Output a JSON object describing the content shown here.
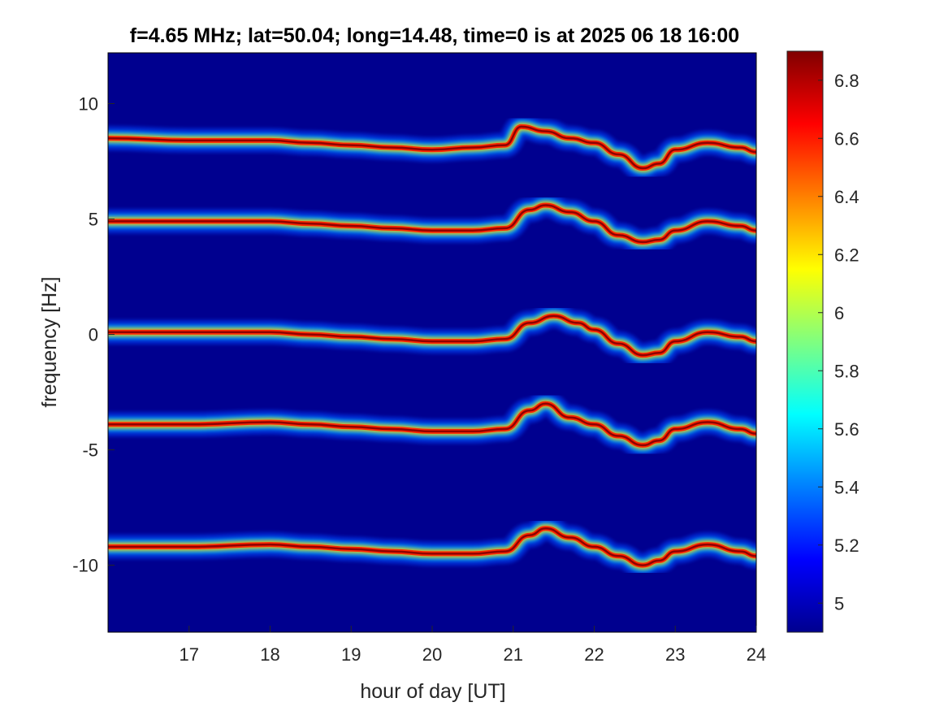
{
  "chart_data": {
    "type": "heatmap",
    "title": "f=4.65 MHz;  lat=50.04; long=14.48, time=0 is at 2025 06 18 16:00",
    "xlabel": "hour of day [UT]",
    "ylabel": "frequency [Hz]",
    "xlim": [
      16.0,
      24.0
    ],
    "ylim": [
      -12.9,
      12.2
    ],
    "x_ticks": [
      17,
      18,
      19,
      20,
      21,
      22,
      23,
      24
    ],
    "x_tick_labels": [
      "17",
      "18",
      "19",
      "20",
      "21",
      "22",
      "23",
      "24"
    ],
    "y_ticks": [
      10,
      5,
      0,
      -5,
      -10
    ],
    "y_tick_labels": [
      "10",
      "5",
      "0",
      "-5",
      "-10"
    ],
    "colorbar": {
      "range": [
        4.9,
        6.9
      ],
      "ticks": [
        6.8,
        6.6,
        6.4,
        6.2,
        6.0,
        5.8,
        5.6,
        5.4,
        5.2,
        5.0
      ],
      "tick_labels": [
        "6.8",
        "6.6",
        "6.4",
        "6.2",
        "6",
        "5.8",
        "5.6",
        "5.4",
        "5.2",
        "5"
      ],
      "colormap": "jet"
    },
    "background_color": "#00008f",
    "series": [
      {
        "hours": [
          16.0,
          17.0,
          18.0,
          18.5,
          19.0,
          19.5,
          20.0,
          20.5,
          20.9,
          21.1,
          21.4,
          21.7,
          22.0,
          22.3,
          22.6,
          22.8,
          23.0,
          23.4,
          23.8,
          24.0
        ],
        "freq": [
          8.5,
          8.4,
          8.4,
          8.3,
          8.2,
          8.1,
          8.0,
          8.1,
          8.2,
          9.0,
          8.8,
          8.5,
          8.3,
          7.8,
          7.2,
          7.4,
          8.0,
          8.3,
          8.1,
          7.9
        ]
      },
      {
        "hours": [
          16.0,
          17.0,
          18.0,
          18.5,
          19.0,
          19.5,
          20.0,
          20.5,
          20.9,
          21.2,
          21.4,
          21.7,
          22.0,
          22.3,
          22.6,
          22.8,
          23.0,
          23.4,
          23.8,
          24.0
        ],
        "freq": [
          4.9,
          4.9,
          4.9,
          4.8,
          4.7,
          4.6,
          4.5,
          4.5,
          4.6,
          5.4,
          5.6,
          5.3,
          4.9,
          4.3,
          4.0,
          4.1,
          4.5,
          4.9,
          4.7,
          4.5
        ]
      },
      {
        "hours": [
          16.0,
          17.0,
          18.0,
          18.5,
          19.0,
          19.5,
          20.0,
          20.5,
          20.9,
          21.2,
          21.5,
          21.8,
          22.0,
          22.3,
          22.6,
          22.8,
          23.0,
          23.4,
          23.8,
          24.0
        ],
        "freq": [
          0.1,
          0.1,
          0.1,
          0.0,
          -0.1,
          -0.2,
          -0.3,
          -0.3,
          -0.2,
          0.5,
          0.8,
          0.5,
          0.2,
          -0.4,
          -0.9,
          -0.8,
          -0.3,
          0.1,
          -0.1,
          -0.3
        ]
      },
      {
        "hours": [
          16.0,
          17.0,
          18.0,
          18.5,
          19.0,
          19.5,
          20.0,
          20.5,
          20.9,
          21.2,
          21.4,
          21.7,
          22.0,
          22.3,
          22.6,
          22.8,
          23.0,
          23.4,
          23.8,
          24.0
        ],
        "freq": [
          -3.9,
          -3.9,
          -3.8,
          -3.9,
          -4.0,
          -4.1,
          -4.2,
          -4.2,
          -4.1,
          -3.3,
          -3.0,
          -3.6,
          -3.9,
          -4.4,
          -4.8,
          -4.6,
          -4.1,
          -3.8,
          -4.1,
          -4.3
        ]
      },
      {
        "hours": [
          16.0,
          17.0,
          18.0,
          18.5,
          19.0,
          19.5,
          20.0,
          20.5,
          20.9,
          21.2,
          21.4,
          21.7,
          22.0,
          22.3,
          22.6,
          22.8,
          23.0,
          23.4,
          23.8,
          24.0
        ],
        "freq": [
          -9.2,
          -9.2,
          -9.1,
          -9.2,
          -9.3,
          -9.4,
          -9.5,
          -9.5,
          -9.4,
          -8.7,
          -8.4,
          -8.8,
          -9.2,
          -9.6,
          -10.0,
          -9.8,
          -9.4,
          -9.1,
          -9.4,
          -9.6
        ]
      }
    ]
  }
}
